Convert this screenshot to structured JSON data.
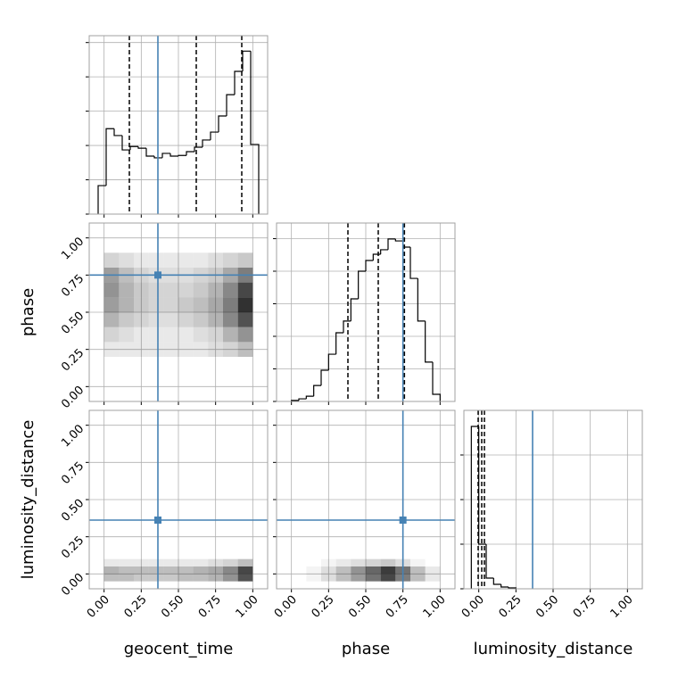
{
  "chart_data": {
    "type": "corner",
    "truth_color": "#4682b4",
    "hist_color": "#000000",
    "grid": true,
    "parameters": [
      {
        "name": "geocent_time",
        "lim": [
          -0.1,
          1.1
        ],
        "ticks": [
          {
            "value": 0,
            "label": "0.00"
          },
          {
            "value": 0.25,
            "label": "0.25"
          },
          {
            "value": 0.5,
            "label": "0.50"
          },
          {
            "value": 0.75,
            "label": "0.75"
          },
          {
            "value": 1,
            "label": "1.00"
          }
        ],
        "truth": 0.362,
        "quantiles": [
          0.17,
          0.62,
          0.926
        ],
        "hist": {
          "bins": [
            -0.04,
            0.014,
            0.068,
            0.122,
            0.176,
            0.23,
            0.284,
            0.338,
            0.392,
            0.446,
            0.5,
            0.554,
            0.608,
            0.662,
            0.716,
            0.77,
            0.824,
            0.878,
            0.932,
            0.986,
            1.04
          ],
          "counts": [
            0.83,
            2.49,
            2.29,
            1.87,
            1.97,
            1.92,
            1.69,
            1.64,
            1.77,
            1.69,
            1.71,
            1.82,
            1.95,
            2.16,
            2.39,
            2.86,
            3.48,
            4.16,
            4.75,
            2.03
          ],
          "ylim": [
            0,
            5.2
          ],
          "yticks": [
            0,
            1,
            2,
            3,
            4,
            5
          ]
        }
      },
      {
        "name": "phase",
        "lim": [
          -0.1,
          1.1
        ],
        "ticks": [
          {
            "value": 0,
            "label": "0.00"
          },
          {
            "value": 0.25,
            "label": "0.25"
          },
          {
            "value": 0.5,
            "label": "0.50"
          },
          {
            "value": 0.75,
            "label": "0.75"
          },
          {
            "value": 1,
            "label": "1.00"
          }
        ],
        "truth": 0.75,
        "quantiles": [
          0.38,
          0.584,
          0.76
        ],
        "hist": {
          "bins": [
            0,
            0.05,
            0.1,
            0.15,
            0.2,
            0.25,
            0.3,
            0.35,
            0.4,
            0.45,
            0.5,
            0.55,
            0.6,
            0.65,
            0.7,
            0.75,
            0.8,
            0.85,
            0.9,
            0.95,
            1
          ],
          "counts": [
            0.03,
            0.08,
            0.16,
            0.49,
            0.96,
            1.45,
            2.11,
            2.47,
            3.15,
            4.0,
            4.33,
            4.52,
            4.66,
            4.99,
            4.93,
            4.74,
            3.78,
            2.47,
            1.21,
            0.22
          ],
          "ylim": [
            0,
            5.48
          ],
          "yticks": [
            0,
            1,
            2,
            3,
            4,
            5
          ]
        }
      },
      {
        "name": "luminosity_distance",
        "lim": [
          -0.1,
          1.1
        ],
        "ticks": [
          {
            "value": 0,
            "label": "0.00"
          },
          {
            "value": 0.25,
            "label": "0.25"
          },
          {
            "value": 0.5,
            "label": "0.50"
          },
          {
            "value": 0.75,
            "label": "0.75"
          },
          {
            "value": 1,
            "label": "1.00"
          }
        ],
        "truth": 0.362,
        "quantiles": [
          -0.004,
          0.02,
          0.038
        ],
        "hist": {
          "bins": [
            -0.05,
            0,
            0.05,
            0.1,
            0.15,
            0.2,
            0.25
          ],
          "counts": [
            3.64,
            1.0,
            0.24,
            0.1,
            0.04,
            0.02
          ],
          "ylim": [
            0,
            4
          ],
          "yticks": [
            0,
            1,
            2,
            3
          ]
        }
      }
    ],
    "pairs": [
      {
        "x": 0,
        "y": 1,
        "xbins": [
          0,
          0.1,
          0.2,
          0.3,
          0.4,
          0.5,
          0.6,
          0.7,
          0.8,
          0.9,
          1
        ],
        "ybins": [
          0.2,
          0.3,
          0.4,
          0.5,
          0.6,
          0.7,
          0.8,
          0.9
        ],
        "density": [
          [
            0.1,
            0.1,
            0.1,
            0.1,
            0.1,
            0.1,
            0.1,
            0.15,
            0.2,
            0.3
          ],
          [
            0.2,
            0.15,
            0.1,
            0.1,
            0.1,
            0.1,
            0.15,
            0.2,
            0.35,
            0.5
          ],
          [
            0.35,
            0.25,
            0.2,
            0.15,
            0.15,
            0.2,
            0.25,
            0.35,
            0.55,
            0.8
          ],
          [
            0.45,
            0.35,
            0.25,
            0.2,
            0.2,
            0.25,
            0.3,
            0.4,
            0.6,
            0.95
          ],
          [
            0.5,
            0.35,
            0.25,
            0.2,
            0.2,
            0.2,
            0.25,
            0.35,
            0.55,
            0.85
          ],
          [
            0.45,
            0.3,
            0.2,
            0.15,
            0.15,
            0.15,
            0.2,
            0.25,
            0.4,
            0.6
          ],
          [
            0.2,
            0.15,
            0.1,
            0.1,
            0.1,
            0.1,
            0.1,
            0.15,
            0.2,
            0.25
          ]
        ]
      },
      {
        "x": 0,
        "y": 2,
        "xbins": [
          0,
          0.1,
          0.2,
          0.3,
          0.4,
          0.5,
          0.6,
          0.7,
          0.8,
          0.9,
          1
        ],
        "ybins": [
          -0.05,
          0,
          0.05,
          0.1
        ],
        "density": [
          [
            0.3,
            0.3,
            0.25,
            0.25,
            0.25,
            0.3,
            0.3,
            0.35,
            0.5,
            0.8
          ],
          [
            0.35,
            0.3,
            0.3,
            0.3,
            0.3,
            0.3,
            0.35,
            0.4,
            0.55,
            0.85
          ],
          [
            0.1,
            0.1,
            0.1,
            0.1,
            0.1,
            0.1,
            0.1,
            0.15,
            0.2,
            0.3
          ]
        ]
      },
      {
        "x": 1,
        "y": 2,
        "xbins": [
          0.1,
          0.2,
          0.3,
          0.4,
          0.5,
          0.6,
          0.7,
          0.8,
          0.9,
          1
        ],
        "ybins": [
          -0.05,
          0,
          0.05,
          0.1
        ],
        "density": [
          [
            0.05,
            0.15,
            0.3,
            0.45,
            0.65,
            0.85,
            0.6,
            0.3,
            0.1
          ],
          [
            0.05,
            0.15,
            0.3,
            0.5,
            0.7,
            0.9,
            0.65,
            0.3,
            0.1
          ],
          [
            0,
            0.05,
            0.1,
            0.15,
            0.2,
            0.25,
            0.15,
            0.05,
            0
          ]
        ]
      }
    ]
  }
}
